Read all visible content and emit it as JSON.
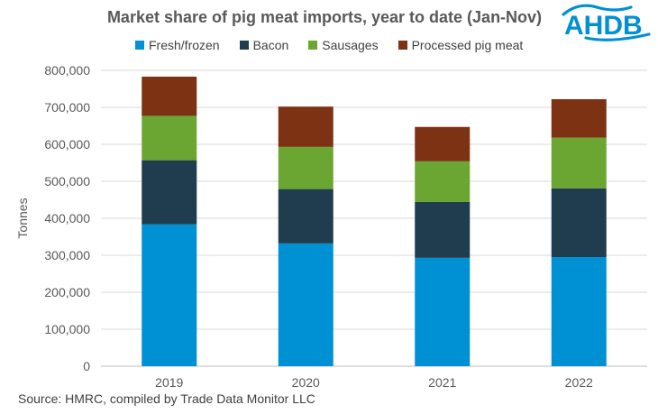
{
  "chart_data": {
    "type": "bar",
    "stacked": true,
    "title": "Market share of pig meat imports, year to date (Jan-Nov)",
    "ylabel": "Tonnes",
    "xlabel": "",
    "categories": [
      "2019",
      "2020",
      "2021",
      "2022"
    ],
    "ylim": [
      0,
      800000
    ],
    "yticks": [
      0,
      100000,
      200000,
      300000,
      400000,
      500000,
      600000,
      700000,
      800000
    ],
    "ytick_labels": [
      "0",
      "100,000",
      "200,000",
      "300,000",
      "400,000",
      "500,000",
      "600,000",
      "700,000",
      "800,000"
    ],
    "grid": true,
    "legend_position": "top",
    "series": [
      {
        "name": "Fresh/frozen",
        "color": "#0090d4",
        "values": [
          384000,
          332000,
          293000,
          295000
        ]
      },
      {
        "name": "Bacon",
        "color": "#1f3d4f",
        "values": [
          173000,
          147000,
          151000,
          186000
        ]
      },
      {
        "name": "Sausages",
        "color": "#6aa631",
        "values": [
          120000,
          114000,
          110000,
          137000
        ]
      },
      {
        "name": "Processed pig meat",
        "color": "#7d3214",
        "values": [
          106000,
          109000,
          93000,
          104000
        ]
      }
    ]
  },
  "logo": {
    "text": "AHDB",
    "color": "#0090d4",
    "icon": "ahdb-wave-logo"
  },
  "source": "Source: HMRC, compiled by Trade Data Monitor LLC"
}
